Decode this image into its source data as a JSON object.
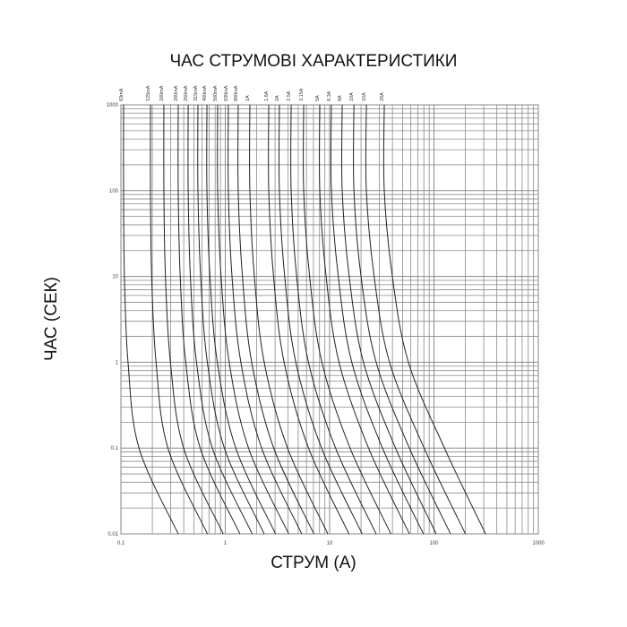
{
  "chart_data": {
    "type": "line",
    "title": "ЧАС СТРУМОВІ ХАРАКТЕРИСТИКИ",
    "xlabel": "СТРУМ (A)",
    "ylabel": "ЧАС (СЕК)",
    "x_scale": "log",
    "y_scale": "log",
    "xlim": [
      0.1,
      1000
    ],
    "ylim": [
      0.01,
      1000
    ],
    "grid": true,
    "x_ticks": [
      "0.1",
      "1",
      "10",
      "100",
      "1000"
    ],
    "y_ticks": [
      "1000",
      "100",
      "10",
      "1",
      "0.1",
      "0.01"
    ],
    "line_color": "#222222",
    "grid_color": "#8a8a8a",
    "times": [
      1000,
      100,
      10,
      1,
      0.1,
      0.01
    ],
    "series": [
      {
        "name": "63mA",
        "currents": [
          0.106,
          0.106,
          0.108,
          0.117,
          0.149,
          0.354
        ]
      },
      {
        "name": "125mA",
        "currents": [
          0.192,
          0.192,
          0.197,
          0.217,
          0.282,
          0.674
        ]
      },
      {
        "name": "160mA",
        "currents": [
          0.258,
          0.258,
          0.267,
          0.298,
          0.399,
          0.955
        ]
      },
      {
        "name": "200mA",
        "currents": [
          0.354,
          0.354,
          0.37,
          0.418,
          0.575,
          1.38
        ]
      },
      {
        "name": "250mA",
        "currents": [
          0.441,
          0.441,
          0.463,
          0.53,
          0.752,
          1.81
        ]
      },
      {
        "name": "315mA",
        "currents": [
          0.547,
          0.547,
          0.581,
          0.673,
          0.98,
          2.36
        ]
      },
      {
        "name": "400mA",
        "currents": [
          0.667,
          0.667,
          0.713,
          0.839,
          1.26,
          3.03
        ]
      },
      {
        "name": "500mA",
        "currents": [
          0.845,
          0.845,
          0.912,
          1.09,
          1.67,
          4.05
        ]
      },
      {
        "name": "630mA",
        "currents": [
          1.07,
          1.07,
          1.16,
          1.41,
          2.23,
          5.4
        ]
      },
      {
        "name": "800mA",
        "currents": [
          1.33,
          1.33,
          1.46,
          1.79,
          2.91,
          7.06
        ]
      },
      {
        "name": "1A",
        "currents": [
          1.72,
          1.72,
          1.9,
          2.36,
          3.95,
          9.61
        ]
      },
      {
        "name": "1.6A",
        "currents": [
          2.61,
          2.61,
          2.9,
          3.66,
          6.28,
          15.3
        ]
      },
      {
        "name": "2A",
        "currents": [
          3.3,
          3.3,
          3.71,
          4.74,
          8.37,
          20.5
        ]
      },
      {
        "name": "2.5A",
        "currents": [
          4.28,
          4.28,
          4.83,
          6.27,
          11.4,
          27.9
        ]
      },
      {
        "name": "3.15A",
        "currents": [
          5.64,
          5.64,
          6.43,
          8.43,
          15.7,
          38.6
        ]
      },
      {
        "name": "5A",
        "currents": [
          8.05,
          8.05,
          9.25,
          12.3,
          23.6,
          58.1
        ]
      },
      {
        "name": "6.3A",
        "currents": [
          10.4,
          10.4,
          12.1,
          16.3,
          32.1,
          79.1
        ]
      },
      {
        "name": "8A",
        "currents": [
          13.2,
          13.2,
          15.4,
          21.1,
          42.8,
          105
        ]
      },
      {
        "name": "10A",
        "currents": [
          17.1,
          17.1,
          20.0,
          27.9,
          58.1,
          144
        ]
      },
      {
        "name": "15A",
        "currents": [
          22.5,
          22.5,
          26.7,
          37.5,
          80.5,
          200
        ]
      },
      {
        "name": "20A",
        "currents": [
          33.4,
          33.4,
          39.9,
          56.9,
          126,
          312
        ]
      }
    ]
  }
}
